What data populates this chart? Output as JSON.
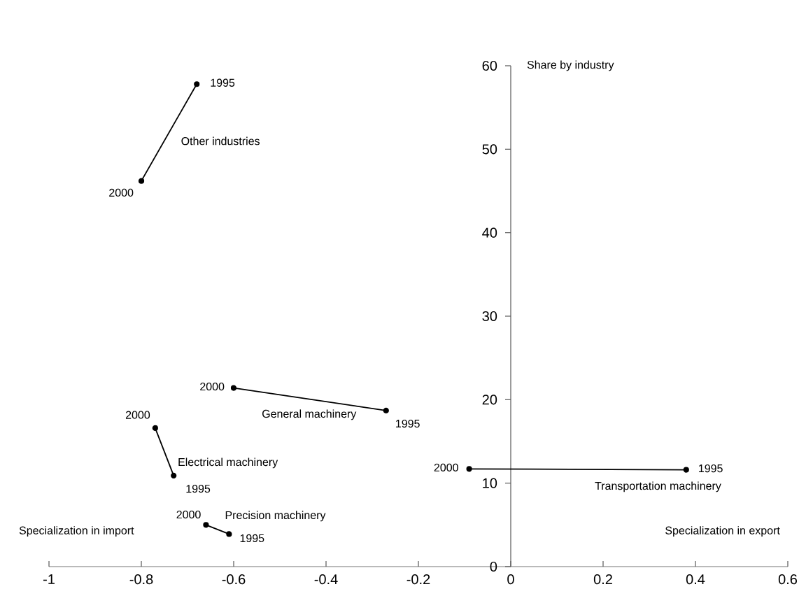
{
  "chart_data": {
    "type": "line",
    "xlabel": "Specialization in export",
    "ylabel": "Share by industry",
    "xlim": [
      -1,
      0.6
    ],
    "xticks": [
      -1,
      -0.8,
      -0.6,
      -0.4,
      -0.2,
      0,
      0.2,
      0.4,
      0.6
    ],
    "ylim": [
      0,
      60
    ],
    "yticks": [
      0,
      10,
      20,
      30,
      40,
      50,
      60
    ],
    "marker": "circle",
    "annotations": [
      "Specialization in import",
      {
        "text": "1995",
        "x": -0.68,
        "y": 57.8
      },
      {
        "text": "2000",
        "x": -0.8,
        "y": 46.2
      },
      {
        "text": "2000",
        "x": -0.6,
        "y": 21.4
      },
      {
        "text": "1995",
        "x": -0.27,
        "y": 18.7
      },
      {
        "text": "2000",
        "x": -0.77,
        "y": 16.6
      },
      {
        "text": "1995",
        "x": -0.73,
        "y": 10.9
      },
      {
        "text": "2000",
        "x": -0.66,
        "y": 5.0
      },
      {
        "text": "1995",
        "x": -0.61,
        "y": 3.9
      },
      {
        "text": "2000",
        "x": -0.09,
        "y": 11.7
      },
      {
        "text": "1995",
        "x": 0.38,
        "y": 11.6
      }
    ],
    "series": [
      {
        "name": "Other industries",
        "color": "#000000",
        "x": [
          -0.68,
          -0.8
        ],
        "values": [
          57.8,
          46.2
        ]
      },
      {
        "name": "General machinery",
        "color": "#000000",
        "x": [
          -0.6,
          -0.27
        ],
        "values": [
          21.4,
          18.7
        ]
      },
      {
        "name": "Electrical machinery",
        "color": "#000000",
        "x": [
          -0.77,
          -0.73
        ],
        "values": [
          16.6,
          10.9
        ]
      },
      {
        "name": "Precision machinery",
        "color": "#000000",
        "x": [
          -0.66,
          -0.61
        ],
        "values": [
          5.0,
          3.9
        ]
      },
      {
        "name": "Transportation machinery",
        "color": "#000000",
        "x": [
          -0.09,
          0.38
        ],
        "values": [
          11.7,
          11.6
        ]
      }
    ]
  }
}
